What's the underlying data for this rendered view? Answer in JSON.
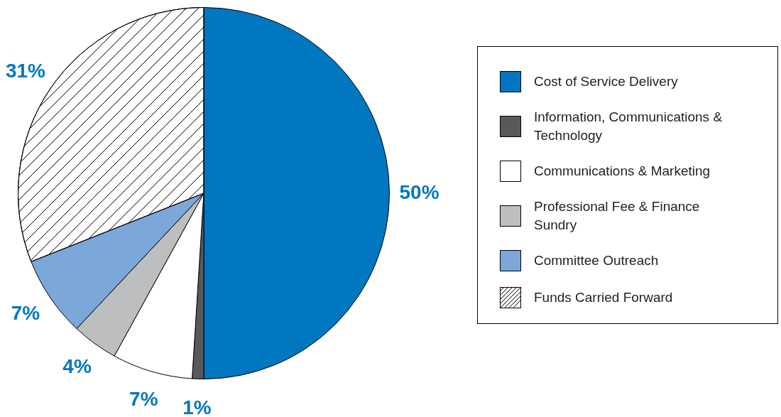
{
  "chart_data": {
    "type": "pie",
    "categories": [
      "Cost of Service Delivery",
      "Information, Communications & Technology",
      "Communications & Marketing",
      "Professional Fee & Finance Sundry",
      "Committee Outreach",
      "Funds Carried Forward"
    ],
    "values": [
      50,
      1,
      7,
      4,
      7,
      31
    ],
    "colors": [
      "#0077c0",
      "#58595b",
      "#ffffff",
      "#bcbec0",
      "#7ba7d9",
      "#ffffff"
    ],
    "value_labels": [
      "50%",
      "1%",
      "7%",
      "4%",
      "7%",
      "31%"
    ],
    "legend": "right"
  }
}
